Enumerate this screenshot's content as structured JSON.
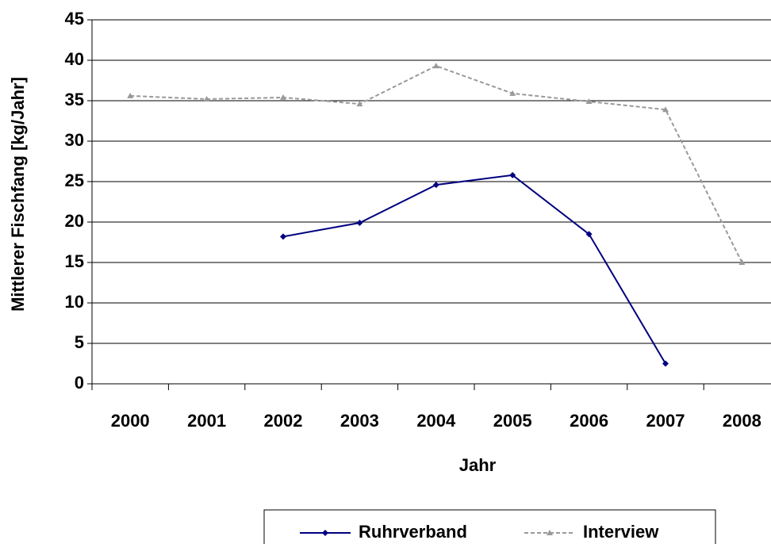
{
  "chart_data": {
    "type": "line",
    "xlabel": "Jahr",
    "ylabel": "Mittlerer Fischfang [kg/Jahr]",
    "categories": [
      "2000",
      "2001",
      "2002",
      "2003",
      "2004",
      "2005",
      "2006",
      "2007",
      "2008"
    ],
    "series": [
      {
        "name": "Ruhrverband",
        "color": "#000080",
        "marker": "diamond",
        "dashed": false,
        "values": [
          null,
          null,
          18.2,
          19.9,
          24.6,
          25.8,
          18.5,
          2.5,
          null
        ]
      },
      {
        "name": "Interview",
        "color": "#999999",
        "marker": "triangle",
        "dashed": true,
        "values": [
          35.6,
          35.2,
          35.4,
          34.6,
          39.3,
          35.9,
          34.9,
          33.9,
          15.0
        ]
      }
    ],
    "ylim": [
      0,
      45
    ],
    "yticks": [
      0,
      5,
      10,
      15,
      20,
      25,
      30,
      35,
      40,
      45
    ],
    "grid": true
  }
}
